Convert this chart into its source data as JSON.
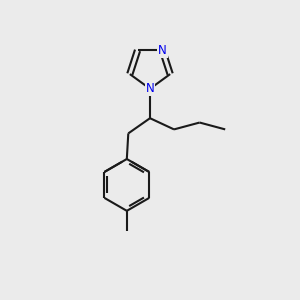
{
  "background_color": "#ebebeb",
  "bond_color": "#1a1a1a",
  "N_color": "#0000ee",
  "line_width": 1.5,
  "figsize": [
    3.0,
    3.0
  ],
  "dpi": 100
}
